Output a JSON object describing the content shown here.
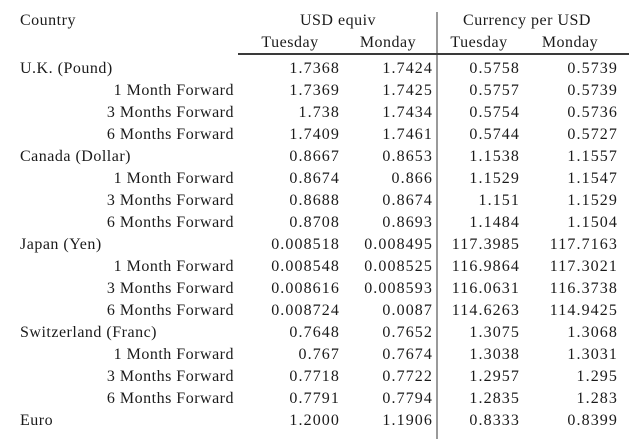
{
  "page": {
    "background_color": "#ffffff",
    "text_color": "#1a1a1a",
    "divider_line_color": "#9a9a9a",
    "header_rule_color": "#3a3a3a"
  },
  "table": {
    "headers": {
      "country": "Country",
      "usd_equiv": "USD equiv",
      "currency_per_usd": "Currency per USD",
      "sub_headers": [
        "Tuesday",
        "Monday",
        "Tuesday",
        "Monday"
      ]
    },
    "rows": [
      {
        "label": "U.K. (Pound)",
        "indent": false,
        "values": [
          "1.7368",
          "1.7424",
          "0.5758",
          "0.5739"
        ]
      },
      {
        "label": "1 Month Forward",
        "indent": true,
        "values": [
          "1.7369",
          "1.7425",
          "0.5757",
          "0.5739"
        ]
      },
      {
        "label": "3 Months Forward",
        "indent": true,
        "values": [
          "1.738",
          "1.7434",
          "0.5754",
          "0.5736"
        ]
      },
      {
        "label": "6 Months Forward",
        "indent": true,
        "values": [
          "1.7409",
          "1.7461",
          "0.5744",
          "0.5727"
        ]
      },
      {
        "label": "Canada (Dollar)",
        "indent": false,
        "values": [
          "0.8667",
          "0.8653",
          "1.1538",
          "1.1557"
        ]
      },
      {
        "label": "1 Month Forward",
        "indent": true,
        "values": [
          "0.8674",
          "0.866",
          "1.1529",
          "1.1547"
        ]
      },
      {
        "label": "3 Months Forward",
        "indent": true,
        "values": [
          "0.8688",
          "0.8674",
          "1.151",
          "1.1529"
        ]
      },
      {
        "label": "6 Months Forward",
        "indent": true,
        "values": [
          "0.8708",
          "0.8693",
          "1.1484",
          "1.1504"
        ]
      },
      {
        "label": "Japan (Yen)",
        "indent": false,
        "values": [
          "0.008518",
          "0.008495",
          "117.3985",
          "117.7163"
        ]
      },
      {
        "label": "1 Month Forward",
        "indent": true,
        "values": [
          "0.008548",
          "0.008525",
          "116.9864",
          "117.3021"
        ]
      },
      {
        "label": "3 Months Forward",
        "indent": true,
        "values": [
          "0.008616",
          "0.008593",
          "116.0631",
          "116.3738"
        ]
      },
      {
        "label": "6 Months Forward",
        "indent": true,
        "values": [
          "0.008724",
          "0.0087",
          "114.6263",
          "114.9425"
        ]
      },
      {
        "label": "Switzerland (Franc)",
        "indent": false,
        "values": [
          "0.7648",
          "0.7652",
          "1.3075",
          "1.3068"
        ]
      },
      {
        "label": "1 Month Forward",
        "indent": true,
        "values": [
          "0.767",
          "0.7674",
          "1.3038",
          "1.3031"
        ]
      },
      {
        "label": "3 Months Forward",
        "indent": true,
        "values": [
          "0.7718",
          "0.7722",
          "1.2957",
          "1.295"
        ]
      },
      {
        "label": "6 Months Forward",
        "indent": true,
        "values": [
          "0.7791",
          "0.7794",
          "1.2835",
          "1.283"
        ]
      },
      {
        "label": "Euro",
        "indent": false,
        "values": [
          "1.2000",
          "1.1906",
          "0.8333",
          "0.8399"
        ]
      }
    ]
  }
}
